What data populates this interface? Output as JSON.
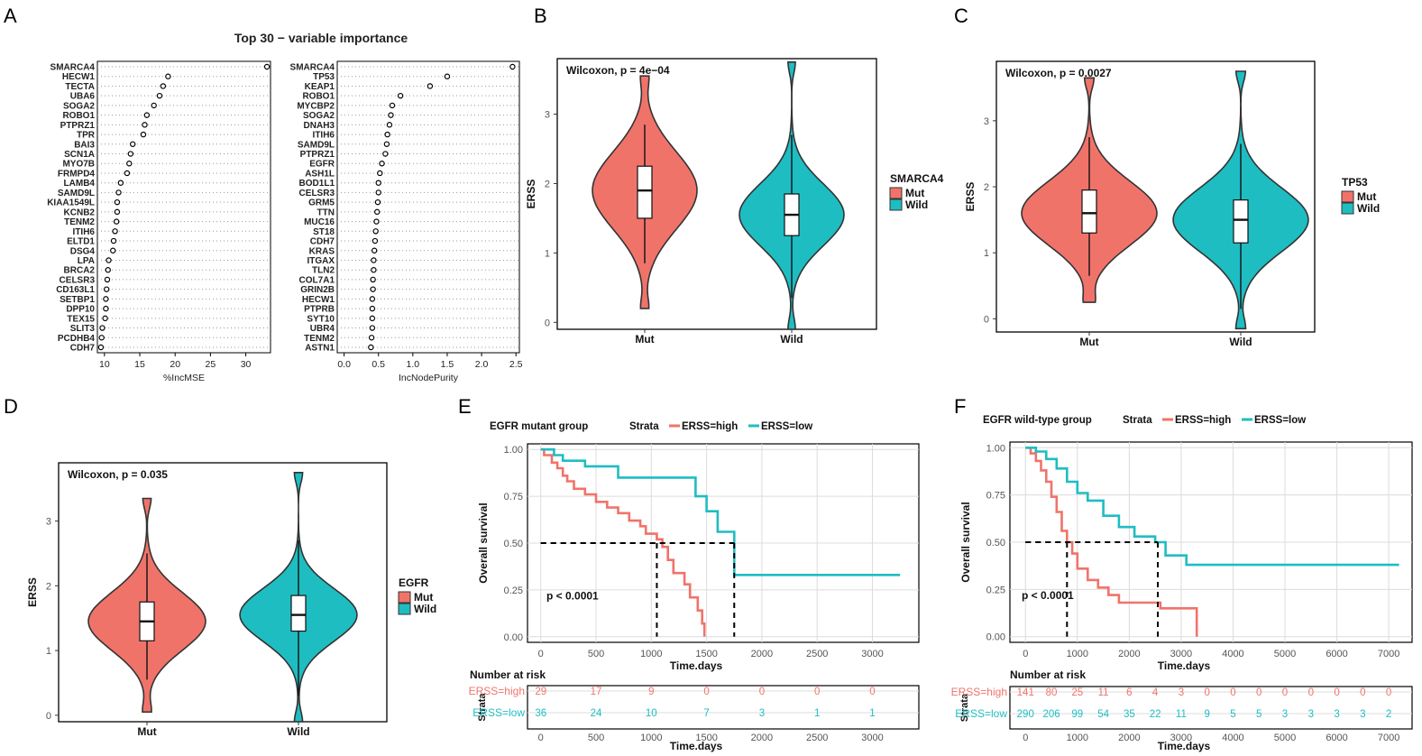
{
  "colors": {
    "red": "#F0736A",
    "cyan": "#1EBDC2",
    "text": "#333333",
    "grid": "#DCDCDC"
  },
  "panel_letters": {
    "a": "A",
    "b": "B",
    "c": "C",
    "d": "D",
    "e": "E",
    "f": "F"
  },
  "chart_data": [
    {
      "panel": "A",
      "type": "scatter",
      "title": "Top 30 − variable importance",
      "xlabel": "%IncMSE",
      "xticks": [
        10,
        15,
        20,
        25,
        30
      ],
      "xlim": [
        9,
        33.5
      ],
      "labels": [
        "SMARCA4",
        "HECW1",
        "TECTA",
        "UBA6",
        "SOGA2",
        "ROBO1",
        "PTPRZ1",
        "TPR",
        "BAI3",
        "SCN1A",
        "MYO7B",
        "FRMPD4",
        "LAMB4",
        "SAMD9L",
        "KIAA1549L",
        "KCNB2",
        "TENM2",
        "ITIH6",
        "ELTD1",
        "DSG4",
        "LPA",
        "BRCA2",
        "CELSR3",
        "CD163L1",
        "SETBP1",
        "DPP10",
        "TEX15",
        "SLIT3",
        "PCDHB4",
        "CDH7"
      ],
      "values": [
        33,
        19,
        18.3,
        17.8,
        17,
        16,
        15.7,
        15.5,
        14,
        13.7,
        13.5,
        13.2,
        12.3,
        12,
        11.8,
        11.8,
        11.7,
        11.5,
        11.3,
        11.2,
        10.6,
        10.5,
        10.4,
        10.3,
        10.2,
        10.2,
        10.1,
        9.7,
        9.6,
        9.5
      ]
    },
    {
      "panel": "A",
      "type": "scatter",
      "title": "",
      "xlabel": "IncNodePurity",
      "xticks": [
        "0.0",
        "0.5",
        "1.0",
        "1.5",
        "2.0",
        "2.5"
      ],
      "xlim": [
        -0.1,
        2.55
      ],
      "labels": [
        "SMARCA4",
        "TP53",
        "KEAP1",
        "ROBO1",
        "MYCBP2",
        "SOGA2",
        "DNAH3",
        "ITIH6",
        "SAMD9L",
        "PTPRZ1",
        "EGFR",
        "ASH1L",
        "BOD1L1",
        "CELSR3",
        "GRM5",
        "TTN",
        "MUC16",
        "ST18",
        "CDH7",
        "KRAS",
        "ITGAX",
        "TLN2",
        "COL7A1",
        "GRIN2B",
        "HECW1",
        "PTPRB",
        "SYT10",
        "UBR4",
        "TENM2",
        "ASTN1"
      ],
      "values": [
        2.45,
        1.5,
        1.25,
        0.82,
        0.7,
        0.68,
        0.66,
        0.63,
        0.62,
        0.6,
        0.55,
        0.52,
        0.5,
        0.5,
        0.49,
        0.48,
        0.47,
        0.46,
        0.45,
        0.44,
        0.43,
        0.43,
        0.42,
        0.42,
        0.41,
        0.41,
        0.41,
        0.41,
        0.4,
        0.39
      ]
    },
    {
      "panel": "B",
      "type": "violin",
      "ylabel": "ERSS",
      "annotation": "Wilcoxon, p = 4e−04",
      "legend_title": "SMARCA4",
      "categories": [
        "Mut",
        "Wild"
      ],
      "yticks": [
        "0",
        "1",
        "2",
        "3"
      ],
      "ylim": [
        -0.1,
        3.8
      ],
      "groups": [
        {
          "name": "Mut",
          "vmin": 0.2,
          "vmax": 3.55,
          "q1": 1.5,
          "median": 1.9,
          "q3": 2.25,
          "wlo": 0.85,
          "whi": 2.85
        },
        {
          "name": "Wild",
          "vmin": -0.1,
          "vmax": 3.75,
          "q1": 1.25,
          "median": 1.55,
          "q3": 1.85,
          "wlo": 0.35,
          "whi": 2.7
        }
      ]
    },
    {
      "panel": "C",
      "type": "violin",
      "ylabel": "ERSS",
      "annotation": "Wilcoxon, p = 0.0027",
      "legend_title": "TP53",
      "categories": [
        "Mut",
        "Wild"
      ],
      "yticks": [
        "0",
        "1",
        "2",
        "3"
      ],
      "ylim": [
        -0.2,
        3.9
      ],
      "groups": [
        {
          "name": "Mut",
          "vmin": 0.25,
          "vmax": 3.65,
          "q1": 1.3,
          "median": 1.6,
          "q3": 1.95,
          "wlo": 0.65,
          "whi": 2.75
        },
        {
          "name": "Wild",
          "vmin": -0.15,
          "vmax": 3.75,
          "q1": 1.15,
          "median": 1.5,
          "q3": 1.8,
          "wlo": 0.15,
          "whi": 2.65
        }
      ]
    },
    {
      "panel": "D",
      "type": "violin",
      "ylabel": "ERSS",
      "annotation": "Wilcoxon, p = 0.035",
      "legend_title": "EGFR",
      "categories": [
        "Mut",
        "Wild"
      ],
      "yticks": [
        "0",
        "1",
        "2",
        "3"
      ],
      "ylim": [
        -0.1,
        3.9
      ],
      "groups": [
        {
          "name": "Mut",
          "vmin": 0.05,
          "vmax": 3.35,
          "q1": 1.15,
          "median": 1.45,
          "q3": 1.75,
          "wlo": 0.55,
          "whi": 2.5
        },
        {
          "name": "Wild",
          "vmin": -0.1,
          "vmax": 3.75,
          "q1": 1.3,
          "median": 1.55,
          "q3": 1.85,
          "wlo": 0.3,
          "whi": 2.7
        }
      ]
    },
    {
      "panel": "E",
      "type": "line",
      "title": "EGFR mutant group",
      "legend_label": "Strata",
      "ylabel": "Overall survival",
      "xlabel": "Time.days",
      "pvalue": "p < 0.0001",
      "xticks": [
        0,
        500,
        1000,
        1500,
        2000,
        2500,
        3000
      ],
      "yticks": [
        "0.00",
        "0.25",
        "0.50",
        "0.75",
        "1.00"
      ],
      "xlim": [
        -120,
        3420
      ],
      "ylim": [
        -0.03,
        1.03
      ],
      "medians": [
        1050,
        1750
      ],
      "series": [
        {
          "name": "ERSS=high",
          "points": [
            [
              0,
              1
            ],
            [
              30,
              0.97
            ],
            [
              100,
              0.93
            ],
            [
              150,
              0.9
            ],
            [
              200,
              0.86
            ],
            [
              240,
              0.83
            ],
            [
              300,
              0.79
            ],
            [
              400,
              0.76
            ],
            [
              500,
              0.72
            ],
            [
              600,
              0.69
            ],
            [
              700,
              0.66
            ],
            [
              800,
              0.62
            ],
            [
              900,
              0.59
            ],
            [
              950,
              0.55
            ],
            [
              1050,
              0.52
            ],
            [
              1100,
              0.48
            ],
            [
              1150,
              0.41
            ],
            [
              1200,
              0.34
            ],
            [
              1300,
              0.28
            ],
            [
              1350,
              0.21
            ],
            [
              1420,
              0.14
            ],
            [
              1460,
              0.07
            ],
            [
              1480,
              0
            ]
          ]
        },
        {
          "name": "ERSS=low",
          "points": [
            [
              0,
              1
            ],
            [
              120,
              0.97
            ],
            [
              200,
              0.94
            ],
            [
              400,
              0.91
            ],
            [
              700,
              0.85
            ],
            [
              1400,
              0.75
            ],
            [
              1500,
              0.67
            ],
            [
              1600,
              0.56
            ],
            [
              1750,
              0.33
            ],
            [
              3250,
              0.33
            ]
          ]
        }
      ],
      "risk": {
        "title": "Number at risk",
        "strata_label": "Strata",
        "xlabel": "Time.days",
        "rows": [
          {
            "name": "ERSS=high",
            "values": [
              "29",
              "17",
              "9",
              "0",
              "0",
              "0",
              "0"
            ]
          },
          {
            "name": "ERSS=low",
            "values": [
              "36",
              "24",
              "10",
              "7",
              "3",
              "1",
              "1"
            ]
          }
        ]
      }
    },
    {
      "panel": "F",
      "type": "line",
      "title": "EGFR wild-type group",
      "legend_label": "Strata",
      "ylabel": "Overall survival",
      "xlabel": "Time.days",
      "pvalue": "p < 0.0001",
      "xticks": [
        0,
        1000,
        2000,
        3000,
        4000,
        5000,
        6000,
        7000
      ],
      "yticks": [
        "0.00",
        "0.25",
        "0.50",
        "0.75",
        "1.00"
      ],
      "xlim": [
        -300,
        7450
      ],
      "ylim": [
        -0.03,
        1.03
      ],
      "medians": [
        800,
        2550
      ],
      "series": [
        {
          "name": "ERSS=high",
          "points": [
            [
              0,
              1
            ],
            [
              100,
              0.97
            ],
            [
              200,
              0.93
            ],
            [
              300,
              0.88
            ],
            [
              400,
              0.82
            ],
            [
              500,
              0.74
            ],
            [
              600,
              0.66
            ],
            [
              700,
              0.56
            ],
            [
              800,
              0.5
            ],
            [
              900,
              0.44
            ],
            [
              1000,
              0.36
            ],
            [
              1200,
              0.3
            ],
            [
              1400,
              0.26
            ],
            [
              1600,
              0.22
            ],
            [
              1800,
              0.18
            ],
            [
              2200,
              0.18
            ],
            [
              2600,
              0.15
            ],
            [
              3300,
              0.15
            ],
            [
              3300,
              0
            ]
          ]
        },
        {
          "name": "ERSS=low",
          "points": [
            [
              0,
              1
            ],
            [
              200,
              0.98
            ],
            [
              400,
              0.94
            ],
            [
              600,
              0.89
            ],
            [
              800,
              0.82
            ],
            [
              1000,
              0.76
            ],
            [
              1200,
              0.72
            ],
            [
              1500,
              0.64
            ],
            [
              1800,
              0.58
            ],
            [
              2100,
              0.53
            ],
            [
              2500,
              0.5
            ],
            [
              2700,
              0.43
            ],
            [
              3100,
              0.38
            ],
            [
              7200,
              0.38
            ]
          ]
        }
      ],
      "risk": {
        "title": "Number at risk",
        "strata_label": "Strata",
        "xlabel": "Time.days",
        "rows": [
          {
            "name": "ERSS=high",
            "values": [
              "141",
              "80",
              "25",
              "11",
              "6",
              "4",
              "3",
              "0",
              "0",
              "0",
              "0",
              "0",
              "0",
              "0",
              "0"
            ]
          },
          {
            "name": "ERSS=low",
            "values": [
              "290",
              "206",
              "99",
              "54",
              "35",
              "22",
              "11",
              "9",
              "5",
              "5",
              "3",
              "3",
              "3",
              "3",
              "2"
            ]
          }
        ]
      }
    }
  ]
}
